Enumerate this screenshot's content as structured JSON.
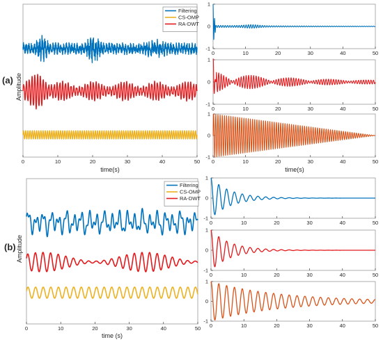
{
  "chart_data": [
    {
      "panel": "(a)",
      "type": "line",
      "title": "",
      "xlabel": "time(s)",
      "ylabel": "Amplitude",
      "xlim": [
        0,
        50
      ],
      "x_ticks": [
        0,
        10,
        20,
        30,
        40,
        50
      ],
      "y_ticks_shown": false,
      "grid": false,
      "legend_position": "top-right",
      "series": [
        {
          "name": "Filtering",
          "color": "#0072BD",
          "style": "noisy broadband signal, largest bursts near t=5, 19, 21"
        },
        {
          "name": "CS-OMP",
          "color": "#EDB120",
          "style": "constant-amplitude fast oscillation"
        },
        {
          "name": "RA-DWT",
          "color": "#E3191C",
          "style": "oscillation, largest near t=3-8, decaying"
        }
      ]
    },
    {
      "panel": "(a) right, row 1",
      "type": "line",
      "xlim": [
        0,
        50
      ],
      "ylim": [
        -1,
        1
      ],
      "x_ticks": [
        0,
        10,
        20,
        30,
        40,
        50
      ],
      "y_ticks": [
        -1,
        0,
        1
      ],
      "series": [
        {
          "color": "#0072BD",
          "style": "sharp spike at t=0, small oscillations elsewhere"
        }
      ]
    },
    {
      "panel": "(a) right, row 2",
      "type": "line",
      "xlim": [
        0,
        50
      ],
      "ylim": [
        -1,
        1
      ],
      "x_ticks": [
        0,
        10,
        20,
        30,
        40,
        50
      ],
      "y_ticks": [
        -1,
        0,
        1
      ],
      "series": [
        {
          "color": "#E3191C",
          "style": "spike at t=0, decaying oscillation with beats"
        }
      ]
    },
    {
      "panel": "(a) right, row 3",
      "type": "line",
      "xlabel": "time(s)",
      "xlim": [
        0,
        50
      ],
      "ylim": [
        -1,
        1
      ],
      "x_ticks": [
        0,
        10,
        20,
        30,
        40,
        50
      ],
      "y_ticks": [
        -1,
        0,
        1
      ],
      "series": [
        {
          "color": "#D95319",
          "style": "fast oscillation, envelope decays linearly from 1 at t=0 to 0 at t=50"
        }
      ]
    },
    {
      "panel": "(b)",
      "type": "line",
      "title": "",
      "xlabel": "time (s)",
      "ylabel": "Amplitude",
      "xlim": [
        0,
        50
      ],
      "x_ticks": [
        0,
        10,
        20,
        30,
        40,
        50
      ],
      "y_ticks_shown": false,
      "grid": false,
      "legend_position": "top-right",
      "series": [
        {
          "name": "Filtering",
          "color": "#0072BD",
          "style": "irregular low-frequency oscillation"
        },
        {
          "name": "CS-OMP",
          "color": "#EDB120",
          "style": "regular sinusoid, period ~2.2 s"
        },
        {
          "name": "RA-DWT",
          "color": "#E3191C",
          "style": "sinusoid with amplitude modulation"
        }
      ]
    },
    {
      "panel": "(b) right, row 1",
      "type": "line",
      "xlim": [
        0,
        50
      ],
      "ylim": [
        -1,
        1
      ],
      "x_ticks": [
        0,
        10,
        20,
        30,
        40,
        50
      ],
      "y_ticks": [
        -1,
        0,
        1
      ],
      "series": [
        {
          "color": "#0072BD",
          "style": "damped oscillation from 1, decays by t~20"
        }
      ]
    },
    {
      "panel": "(b) right, row 2",
      "type": "line",
      "xlim": [
        0,
        50
      ],
      "ylim": [
        -1,
        1
      ],
      "x_ticks": [
        0,
        10,
        20,
        30,
        40,
        50
      ],
      "y_ticks": [
        -1,
        0,
        1
      ],
      "series": [
        {
          "color": "#E3191C",
          "style": "damped oscillation from 1, decays by t~20"
        }
      ]
    },
    {
      "panel": "(b) right, row 3",
      "type": "line",
      "xlim": [
        0,
        50
      ],
      "ylim": [
        -1,
        1
      ],
      "x_ticks": [
        0,
        10,
        20,
        30,
        40,
        50
      ],
      "y_ticks": [
        -1,
        0,
        1
      ],
      "series": [
        {
          "color": "#D95319",
          "style": "slowly damped oscillation from 1 to ~0.1 at t=50"
        }
      ]
    }
  ],
  "labels": {
    "panel_a": "(a)",
    "panel_b": "(b)",
    "ylabel_a": "Amplitude",
    "ylabel_b": "Amplitude",
    "xlabel_a_left": "time(s)",
    "xlabel_a_right": "time(s)",
    "xlabel_b_left": "time (s)",
    "legend_filtering": "Filtering",
    "legend_csomp": "CS-OMP",
    "legend_radwt": "RA-DWT"
  },
  "colors": {
    "filtering": "#0072BD",
    "csomp": "#EDB120",
    "radwt": "#E3191C",
    "orange": "#D95319",
    "axis": "#262626",
    "frame": "#9a9a9a"
  }
}
